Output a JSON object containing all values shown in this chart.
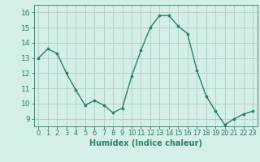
{
  "x": [
    0,
    1,
    2,
    3,
    4,
    5,
    6,
    7,
    8,
    9,
    10,
    11,
    12,
    13,
    14,
    15,
    16,
    17,
    18,
    19,
    20,
    21,
    22,
    23
  ],
  "y": [
    13.0,
    13.6,
    13.3,
    12.0,
    10.9,
    9.9,
    10.2,
    9.9,
    9.4,
    9.7,
    11.8,
    13.5,
    15.0,
    15.8,
    15.8,
    15.1,
    14.6,
    12.2,
    10.5,
    9.5,
    8.6,
    9.0,
    9.3,
    9.5
  ],
  "line_color": "#2e7d6e",
  "marker": "o",
  "markersize": 2.2,
  "linewidth": 1.0,
  "bg_color": "#d4eee8",
  "grid_color": "#b0ceca",
  "xlabel": "Humidex (Indice chaleur)",
  "xlim": [
    -0.5,
    23.5
  ],
  "ylim": [
    8.5,
    16.5
  ],
  "yticks": [
    9,
    10,
    11,
    12,
    13,
    14,
    15,
    16
  ],
  "xtick_labels": [
    "0",
    "1",
    "2",
    "3",
    "4",
    "5",
    "6",
    "7",
    "8",
    "9",
    "10",
    "11",
    "12",
    "13",
    "14",
    "15",
    "16",
    "17",
    "18",
    "19",
    "20",
    "21",
    "22",
    "23"
  ],
  "tick_color": "#2e7d6e",
  "label_fontsize": 6.0,
  "xlabel_fontsize": 7.0,
  "ytick_fontsize": 6.5
}
